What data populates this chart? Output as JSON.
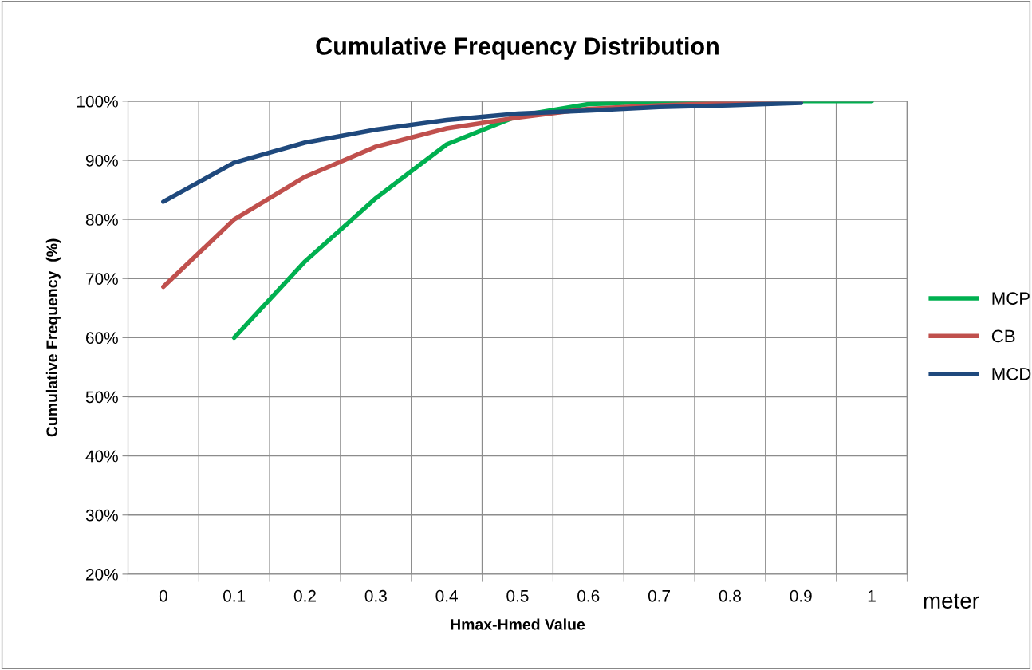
{
  "chart_data": {
    "type": "line",
    "title": "Cumulative Frequency Distribution",
    "xlabel": "Hmax-Hmed Value",
    "ylabel": "Cumulative Frequency  (%)",
    "categories": [
      "0",
      "0.1",
      "0.2",
      "0.3",
      "0.4",
      "0.5",
      "0.6",
      "0.7",
      "0.8",
      "0.9",
      "1"
    ],
    "series": [
      {
        "name": "MCP",
        "color": "#00b050",
        "values": [
          null,
          60,
          72.9,
          83.6,
          92.7,
          97.5,
          99.5,
          99.9,
          100,
          100,
          100
        ]
      },
      {
        "name": "CB",
        "color": "#c0504d",
        "values": [
          68.6,
          80,
          87.2,
          92.3,
          95.4,
          97.2,
          98.7,
          99.3,
          99.7,
          99.9,
          null
        ]
      },
      {
        "name": "MCD",
        "color": "#1f497d",
        "values": [
          83,
          89.6,
          93,
          95.2,
          96.8,
          97.9,
          98.4,
          99,
          99.3,
          99.7,
          null
        ]
      }
    ],
    "ylim": [
      20,
      100
    ],
    "yticks": [
      {
        "value": 20,
        "label": "20%"
      },
      {
        "value": 30,
        "label": "30%"
      },
      {
        "value": 40,
        "label": "40%"
      },
      {
        "value": 50,
        "label": "50%"
      },
      {
        "value": 60,
        "label": "60%"
      },
      {
        "value": 70,
        "label": "70%"
      },
      {
        "value": 80,
        "label": "80%"
      },
      {
        "value": 90,
        "label": "90%"
      },
      {
        "value": 100,
        "label": "100%"
      }
    ],
    "annotations": [
      "meter"
    ],
    "grid": true,
    "legend": "right",
    "marker": "none",
    "line_style": "solid"
  }
}
